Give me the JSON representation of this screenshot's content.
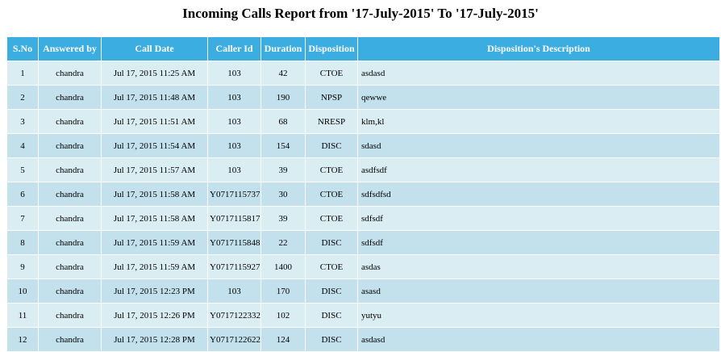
{
  "page": {
    "title": "Incoming Calls Report from '17-July-2015' To '17-July-2015'"
  },
  "colors": {
    "header_bg": "#3bade0",
    "header_text": "#ffffff",
    "row_odd_bg": "#daedf3",
    "row_even_bg": "#c2e1ec"
  },
  "table": {
    "headers": [
      "S.No",
      "Answered by",
      "Call Date",
      "Caller Id",
      "Duration",
      "Disposition",
      "Disposition's Description"
    ],
    "rows": [
      [
        "1",
        "chandra",
        "Jul 17, 2015 11:25 AM",
        "103",
        "42",
        "CTOE",
        "asdasd"
      ],
      [
        "2",
        "chandra",
        "Jul 17, 2015 11:48 AM",
        "103",
        "190",
        "NPSP",
        "qewwe"
      ],
      [
        "3",
        "chandra",
        "Jul 17, 2015 11:51 AM",
        "103",
        "68",
        "NRESP",
        "klm,kl"
      ],
      [
        "4",
        "chandra",
        "Jul 17, 2015 11:54 AM",
        "103",
        "154",
        "DISC",
        "sdasd"
      ],
      [
        "5",
        "chandra",
        "Jul 17, 2015 11:57 AM",
        "103",
        "39",
        "CTOE",
        "asdfsdf"
      ],
      [
        "6",
        "chandra",
        "Jul 17, 2015 11:58 AM",
        "Y0717115737",
        "30",
        "CTOE",
        "sdfsdfsd"
      ],
      [
        "7",
        "chandra",
        "Jul 17, 2015 11:58 AM",
        "Y0717115817",
        "39",
        "CTOE",
        "sdfsdf"
      ],
      [
        "8",
        "chandra",
        "Jul 17, 2015 11:59 AM",
        "Y0717115848",
        "22",
        "DISC",
        "sdfsdf"
      ],
      [
        "9",
        "chandra",
        "Jul 17, 2015 11:59 AM",
        "Y0717115927",
        "1400",
        "CTOE",
        "asdas"
      ],
      [
        "10",
        "chandra",
        "Jul 17, 2015 12:23 PM",
        "103",
        "170",
        "DISC",
        "asasd"
      ],
      [
        "11",
        "chandra",
        "Jul 17, 2015 12:26 PM",
        "Y0717122332",
        "102",
        "DISC",
        "yutyu"
      ],
      [
        "12",
        "chandra",
        "Jul 17, 2015 12:28 PM",
        "Y0717122622",
        "124",
        "DISC",
        "asdasd"
      ]
    ]
  }
}
